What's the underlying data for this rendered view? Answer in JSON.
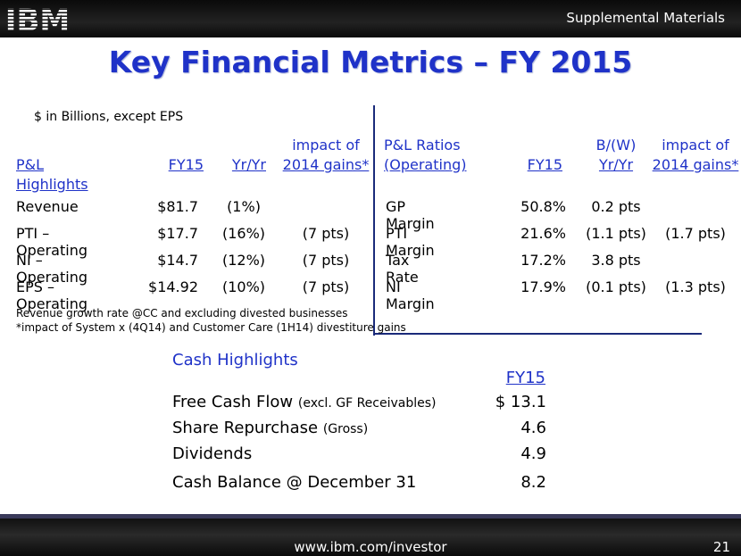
{
  "header": {
    "logo_text": "IBM",
    "section": "Supplemental Materials"
  },
  "title": "Key Financial Metrics – FY 2015",
  "units_note": "$ in Billions, except EPS",
  "pl_highlights": {
    "headers": {
      "label": "P&L Highlights",
      "fy15": "FY15",
      "yr": "Yr/Yr",
      "impact_1": "impact of",
      "impact_2": "2014 gains*"
    },
    "rows": [
      {
        "label": "Revenue",
        "fy15": "$81.7",
        "yr": "(1%)",
        "impact": ""
      },
      {
        "label": "PTI – Operating",
        "fy15": "$17.7",
        "yr": "(16%)",
        "impact": "(7 pts)"
      },
      {
        "label": "NI – Operating",
        "fy15": "$14.7",
        "yr": "(12%)",
        "impact": "(7 pts)"
      },
      {
        "label": "EPS – Operating",
        "fy15": "$14.92",
        "yr": "(10%)",
        "impact": "(7 pts)"
      }
    ]
  },
  "pl_ratios": {
    "headers": {
      "label_1": "P&L Ratios",
      "label_2": "(Operating)",
      "fy15": "FY15",
      "bw_1": "B/(W)",
      "bw_2": "Yr/Yr",
      "impact_1": "impact of",
      "impact_2": "2014 gains*"
    },
    "rows": [
      {
        "label": "GP Margin",
        "fy15": "50.8%",
        "bw": "0.2 pts",
        "impact": ""
      },
      {
        "label": "PTI Margin",
        "fy15": "21.6%",
        "bw": "(1.1 pts)",
        "impact": "(1.7 pts)"
      },
      {
        "label": "Tax Rate",
        "fy15": "17.2%",
        "bw": "3.8 pts",
        "impact": ""
      },
      {
        "label": "NI Margin",
        "fy15": "17.9%",
        "bw": "(0.1 pts)",
        "impact": "(1.3 pts)"
      }
    ]
  },
  "footnotes": [
    "Revenue growth rate @CC and excluding divested businesses",
    "*impact of System x (4Q14) and Customer Care (1H14) divestiture gains"
  ],
  "cash": {
    "title": "Cash Highlights",
    "col": "FY15",
    "rows": [
      {
        "label": "Free Cash Flow",
        "note": "(excl. GF Receivables)",
        "value": "$ 13.1"
      },
      {
        "label": "Share Repurchase",
        "note": "(Gross)",
        "value": "4.6"
      },
      {
        "label": "Dividends",
        "note": "",
        "value": "4.9"
      },
      {
        "label": "Cash Balance @ December 31",
        "note": "",
        "value": "8.2"
      }
    ]
  },
  "footer": {
    "url": "www.ibm.com/investor",
    "page": "21"
  }
}
